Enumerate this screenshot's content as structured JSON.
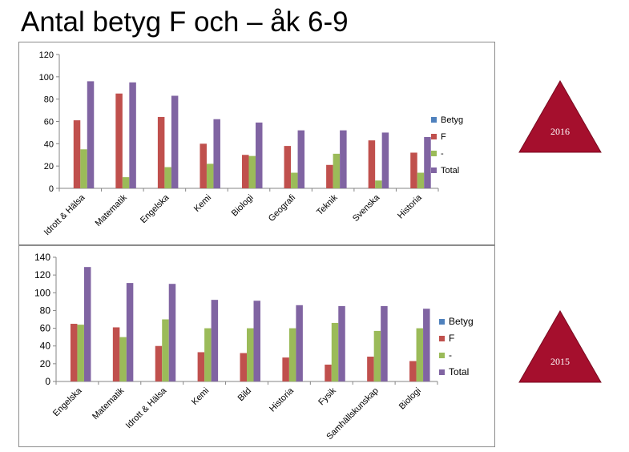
{
  "title": "Antal betyg F och – åk 6-9",
  "colors": {
    "Betyg": "#4f81bd",
    "F": "#c0504d",
    "-": "#9bbb59",
    "Total": "#8064a2"
  },
  "chart_data": [
    {
      "type": "bar",
      "title": "",
      "year_badge": "2016",
      "ylim": [
        0,
        120
      ],
      "yticks": [
        0,
        20,
        40,
        60,
        80,
        100,
        120
      ],
      "legend_position": "right",
      "legend": [
        "Betyg",
        "F",
        "-",
        "Total"
      ],
      "categories": [
        "Idrott & Hälsa",
        "Matematik",
        "Engelska",
        "Kemi",
        "Biologi",
        "Geografi",
        "Teknik",
        "Svenska",
        "Historia"
      ],
      "series": [
        {
          "name": "Betyg",
          "values": [
            0,
            0,
            0,
            0,
            0,
            0,
            0,
            0,
            0
          ]
        },
        {
          "name": "F",
          "values": [
            61,
            85,
            64,
            40,
            30,
            38,
            21,
            43,
            32
          ]
        },
        {
          "name": "-",
          "values": [
            35,
            10,
            19,
            22,
            29,
            14,
            31,
            7,
            14
          ]
        },
        {
          "name": "Total",
          "values": [
            96,
            95,
            83,
            62,
            59,
            52,
            52,
            50,
            46
          ]
        }
      ]
    },
    {
      "type": "bar",
      "title": "",
      "year_badge": "2015",
      "ylim": [
        0,
        140
      ],
      "yticks": [
        0,
        20,
        40,
        60,
        80,
        100,
        120,
        140
      ],
      "legend_position": "right",
      "legend": [
        "Betyg",
        "F",
        "-",
        "Total"
      ],
      "categories": [
        "Engelska",
        "Matematik",
        "Idrott & Hälsa",
        "Kemi",
        "Bild",
        "Historia",
        "Fysik",
        "Samhällskunskap",
        "Biologi"
      ],
      "series": [
        {
          "name": "Betyg",
          "values": [
            0,
            0,
            0,
            0,
            0,
            0,
            0,
            0,
            0
          ]
        },
        {
          "name": "F",
          "values": [
            65,
            61,
            40,
            33,
            32,
            27,
            19,
            28,
            23
          ]
        },
        {
          "name": "-",
          "values": [
            64,
            50,
            70,
            60,
            60,
            60,
            66,
            57,
            60
          ]
        },
        {
          "name": "Total",
          "values": [
            129,
            111,
            110,
            92,
            91,
            86,
            85,
            85,
            82
          ]
        }
      ]
    }
  ]
}
